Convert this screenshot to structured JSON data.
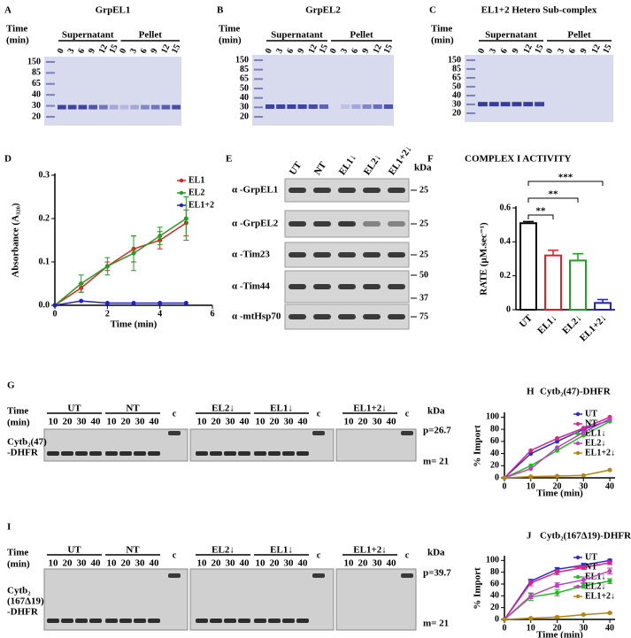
{
  "gels": [
    {
      "letter": "A",
      "title": "GrpEL1",
      "time_label": [
        "Time",
        "(min)"
      ],
      "groups": [
        {
          "name": "Supernatant",
          "lanes": [
            "0",
            "3",
            "6",
            "9",
            "12",
            "15"
          ]
        },
        {
          "name": "Pellet",
          "lanes": [
            "0",
            "3",
            "6",
            "9",
            "12",
            "15"
          ]
        }
      ],
      "markers": [
        "150",
        "85",
        "65",
        "40",
        "30",
        "20"
      ]
    },
    {
      "letter": "B",
      "title": "GrpEL2",
      "time_label": [
        "Time",
        "(min)"
      ],
      "groups": [
        {
          "name": "Supernatant",
          "lanes": [
            "0",
            "3",
            "6",
            "9",
            "12",
            "15"
          ]
        },
        {
          "name": "Pellet",
          "lanes": [
            "0",
            "3",
            "6",
            "9",
            "12",
            "15"
          ]
        }
      ],
      "markers": [
        "150",
        "85",
        "65",
        "50",
        "40",
        "30",
        "20"
      ]
    },
    {
      "letter": "C",
      "title": "EL1+2 Hetero Sub-complex",
      "time_label": [
        "Time",
        "(min)"
      ],
      "groups": [
        {
          "name": "Supernatant",
          "lanes": [
            "0",
            "3",
            "6",
            "9",
            "12",
            "15"
          ]
        },
        {
          "name": "Pellet",
          "lanes": [
            "0",
            "3",
            "6",
            "9",
            "12",
            "15"
          ]
        }
      ],
      "markers": [
        "150",
        "85",
        "65",
        "50",
        "40",
        "30",
        "20"
      ]
    }
  ],
  "blot": {
    "letter": "E",
    "lanes": [
      "UT",
      "NT",
      "EL1↓",
      "EL2↓",
      "EL1+2↓"
    ],
    "unit": "kDa",
    "rows": [
      {
        "antibody": "α -GrpEL1",
        "markers": [
          "25"
        ]
      },
      {
        "antibody": "α -GrpEL2",
        "markers": [
          "25"
        ]
      },
      {
        "antibody": "α -Tim23",
        "markers": [
          "25"
        ]
      },
      {
        "antibody": "α -Tim44",
        "markers": [
          "50",
          "37"
        ]
      },
      {
        "antibody": "α -mtHsp70",
        "markers": [
          "75"
        ]
      }
    ]
  },
  "import_gels": [
    {
      "letter": "G",
      "time_label": [
        "Time",
        "(min)"
      ],
      "groups": [
        {
          "name": "UT",
          "lanes": [
            "10",
            "20",
            "30",
            "40"
          ]
        },
        {
          "name": "NT",
          "lanes": [
            "10",
            "20",
            "30",
            "40"
          ]
        },
        {
          "name": "EL2↓",
          "lanes": [
            "10",
            "20",
            "30",
            "40"
          ]
        },
        {
          "name": "EL1↓",
          "lanes": [
            "10",
            "20",
            "30",
            "40"
          ]
        },
        {
          "name": "EL1+2↓",
          "lanes": [
            "10",
            "20",
            "30",
            "40"
          ]
        }
      ],
      "controls": [
        "c",
        "c",
        "c"
      ],
      "unit": "kDa",
      "bands": [
        "p=26.7",
        "m= 21"
      ],
      "construct": [
        "Cytb₂(47)",
        "-DHFR"
      ]
    },
    {
      "letter": "I",
      "time_label": [
        "Time",
        "(min)"
      ],
      "groups": [
        {
          "name": "UT",
          "lanes": [
            "10",
            "20",
            "30",
            "40"
          ]
        },
        {
          "name": "NT",
          "lanes": [
            "10",
            "20",
            "30",
            "40"
          ]
        },
        {
          "name": "EL2↓",
          "lanes": [
            "10",
            "20",
            "30",
            "40"
          ]
        },
        {
          "name": "EL1↓",
          "lanes": [
            "10",
            "20",
            "30",
            "40"
          ]
        },
        {
          "name": "EL1+2↓",
          "lanes": [
            "10",
            "20",
            "30",
            "40"
          ]
        }
      ],
      "controls": [
        "c",
        "c",
        "c"
      ],
      "unit": "kDa",
      "bands": [
        "p=39.7",
        "m= 21"
      ],
      "construct": [
        "Cytb₂",
        "(167Δ19)",
        "-DHFR"
      ]
    }
  ],
  "chart_data": [
    {
      "letter": "D",
      "type": "line",
      "xlabel": "Time (min)",
      "ylabel": "Absorbance (A₃₂₀)",
      "x": [
        0,
        1,
        2,
        3,
        4,
        5
      ],
      "xlim": [
        0,
        6
      ],
      "xticks": [
        0,
        2,
        4,
        6
      ],
      "ylim": [
        0,
        0.3
      ],
      "yticks": [
        {
          "value": 0,
          "label": "0.0"
        },
        0.1,
        0.2,
        0.3
      ],
      "legend": "upper right",
      "series": [
        {
          "name": "EL1",
          "color": "#e02020",
          "values": [
            0,
            0.04,
            0.09,
            0.13,
            0.15,
            0.19
          ],
          "errors": [
            0,
            0.01,
            0.01,
            0.03,
            0.02,
            0.03
          ]
        },
        {
          "name": "EL2",
          "color": "#20a020",
          "values": [
            0,
            0.05,
            0.09,
            0.12,
            0.16,
            0.2
          ],
          "errors": [
            0,
            0.02,
            0.02,
            0.04,
            0.02,
            0.05
          ]
        },
        {
          "name": "EL1+2",
          "color": "#2020c8",
          "values": [
            0,
            0.01,
            0.005,
            0.005,
            0.005,
            0.005
          ],
          "errors": [
            0,
            0,
            0,
            0,
            0,
            0
          ]
        }
      ]
    },
    {
      "letter": "F",
      "type": "bar",
      "title": "COMPLEX I ACTIVITY",
      "ylabel": "RATE (µM.sec⁻¹)",
      "categories": [
        "UT",
        "EL1↓",
        "EL2↓",
        "EL1+2↓"
      ],
      "values": [
        0.51,
        0.32,
        0.29,
        0.04
      ],
      "errors": [
        0.01,
        0.03,
        0.04,
        0.02
      ],
      "colors": [
        "#000000",
        "#e02020",
        "#20a020",
        "#2020c8"
      ],
      "ylim": [
        0,
        0.6
      ],
      "yticks": [
        0,
        0.2,
        0.4,
        0.6
      ],
      "significance": [
        "**",
        "**",
        "***"
      ]
    },
    {
      "letter": "H",
      "type": "line",
      "title": "Cytb₂(47)-DHFR",
      "xlabel": "Time (min)",
      "ylabel": "% Import",
      "x": [
        0,
        10,
        20,
        30,
        40
      ],
      "xlim": [
        0,
        42
      ],
      "xticks": [
        0,
        10,
        20,
        30,
        40
      ],
      "ylim": [
        0,
        105
      ],
      "yticks": [
        0,
        20,
        40,
        60,
        80,
        100
      ],
      "legend": "right",
      "series": [
        {
          "name": "UT",
          "color": "#2b2bd0",
          "values": [
            0,
            40,
            60,
            80,
            95
          ]
        },
        {
          "name": "NT",
          "color": "#e0208f",
          "values": [
            0,
            45,
            65,
            82,
            100
          ]
        },
        {
          "name": "EL1↓",
          "color": "#22bb22",
          "values": [
            0,
            20,
            45,
            70,
            93
          ]
        },
        {
          "name": "EL2↓",
          "color": "#c040c0",
          "values": [
            0,
            15,
            50,
            75,
            97
          ]
        },
        {
          "name": "EL1+2↓",
          "color": "#b8860b",
          "values": [
            0,
            2,
            3,
            4,
            13
          ]
        }
      ]
    },
    {
      "letter": "J",
      "type": "line",
      "title": "Cytb₂(167Δ19)-DHFR",
      "xlabel": "Time (min)",
      "ylabel": "% Import",
      "x": [
        0,
        10,
        20,
        30,
        40
      ],
      "xlim": [
        0,
        42
      ],
      "xticks": [
        0,
        10,
        20,
        30,
        40
      ],
      "ylim": [
        0,
        105
      ],
      "yticks": [
        0,
        20,
        40,
        60,
        80,
        100
      ],
      "legend": "right",
      "series": [
        {
          "name": "UT",
          "color": "#2b2bd0",
          "values": [
            0,
            65,
            85,
            92,
            100
          ],
          "errors": [
            0,
            3,
            3,
            3,
            2
          ]
        },
        {
          "name": "NT",
          "color": "#e0208f",
          "values": [
            0,
            62,
            80,
            88,
            96
          ],
          "errors": [
            0,
            5,
            4,
            3,
            3
          ]
        },
        {
          "name": "EL1↓",
          "color": "#22bb22",
          "values": [
            0,
            38,
            45,
            57,
            65
          ],
          "errors": [
            0,
            6,
            5,
            4,
            4
          ]
        },
        {
          "name": "EL2↓",
          "color": "#c040c0",
          "values": [
            0,
            40,
            58,
            67,
            82
          ],
          "errors": [
            0,
            5,
            4,
            5,
            5
          ]
        },
        {
          "name": "EL1+2↓",
          "color": "#b8860b",
          "values": [
            0,
            2,
            4,
            8,
            11
          ],
          "errors": [
            0,
            1,
            1,
            1,
            1
          ]
        }
      ]
    }
  ]
}
